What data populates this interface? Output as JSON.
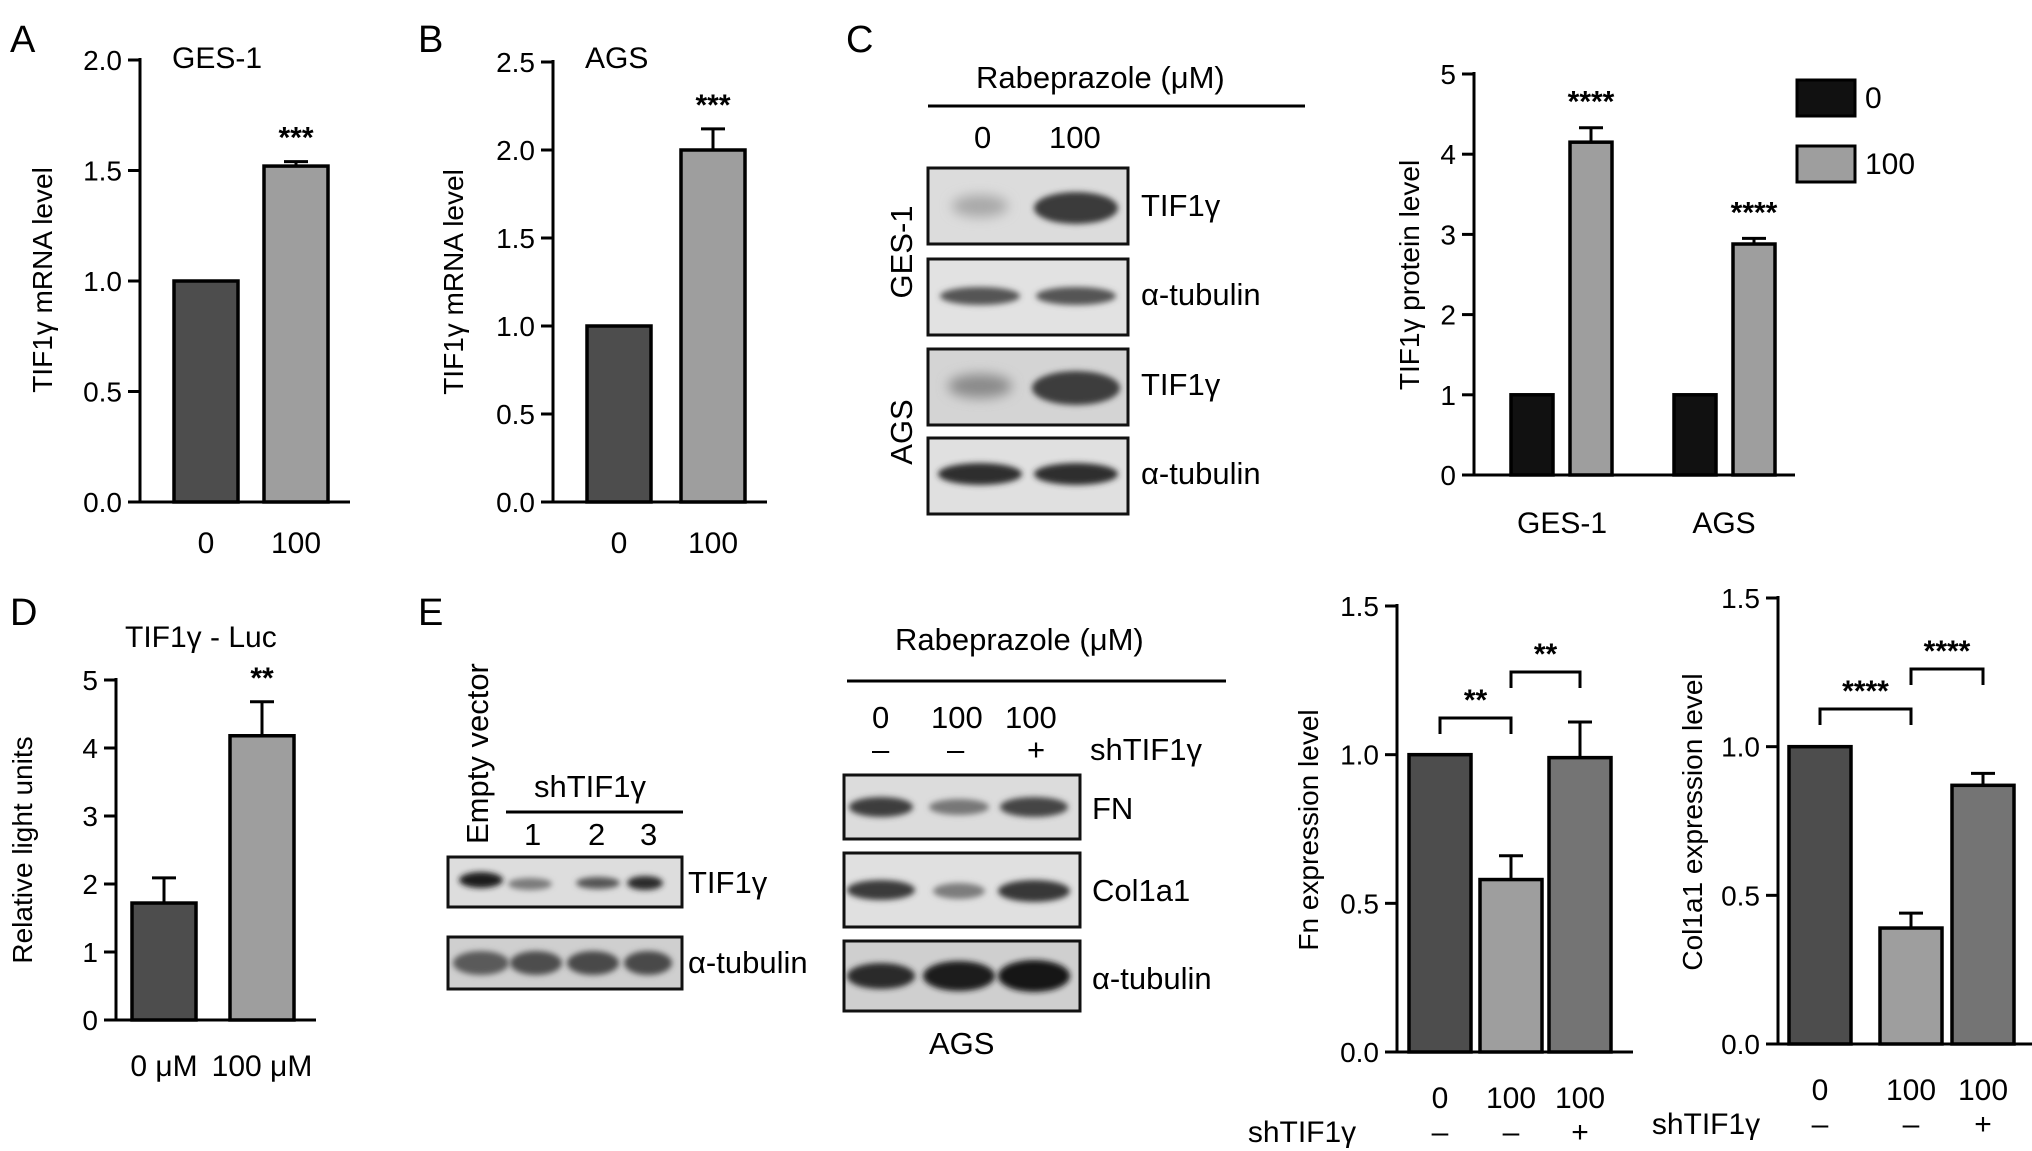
{
  "panels": {
    "A": "A",
    "B": "B",
    "C": "C",
    "D": "D",
    "E": "E"
  },
  "chart_data": [
    {
      "id": "A",
      "type": "bar",
      "title": "GES-1",
      "categories": [
        "0",
        "100"
      ],
      "values": [
        1.0,
        1.52
      ],
      "errors": [
        0,
        0.02
      ],
      "ylabel": "TIF1γ mRNA level",
      "ylim": [
        0,
        2.0
      ],
      "yticks": [
        "0.0",
        "0.5",
        "1.0",
        "1.5",
        "2.0"
      ],
      "significance": "***",
      "colors": [
        "#4d4d4d",
        "#9e9e9e"
      ]
    },
    {
      "id": "B",
      "type": "bar",
      "title": "AGS",
      "categories": [
        "0",
        "100"
      ],
      "values": [
        1.0,
        2.0
      ],
      "errors": [
        0,
        0.12
      ],
      "ylabel": "TIF1γ mRNA level",
      "ylim": [
        0,
        2.5
      ],
      "yticks": [
        "0.0",
        "0.5",
        "1.0",
        "1.5",
        "2.0",
        "2.5"
      ],
      "significance": "***",
      "colors": [
        "#4d4d4d",
        "#9e9e9e"
      ]
    },
    {
      "id": "C",
      "type": "bar",
      "title": "",
      "categories": [
        "GES-1",
        "AGS"
      ],
      "series": [
        {
          "name": "0",
          "values": [
            1.0,
            1.0
          ],
          "errors": [
            0,
            0
          ],
          "color": "#111111"
        },
        {
          "name": "100",
          "values": [
            4.15,
            2.88
          ],
          "errors": [
            0.18,
            0.07
          ],
          "color": "#9e9e9e"
        }
      ],
      "ylabel": "TIF1γ protein level",
      "ylim": [
        0,
        5
      ],
      "yticks": [
        "0",
        "1",
        "2",
        "3",
        "4",
        "5"
      ],
      "significance": [
        "****",
        "****"
      ],
      "legend": "top-right"
    },
    {
      "id": "D",
      "type": "bar",
      "title": "TIF1γ - Luc",
      "categories": [
        "0 μM",
        "100 μM"
      ],
      "values": [
        1.72,
        4.18
      ],
      "errors": [
        0.37,
        0.5
      ],
      "ylabel": "Relative light units",
      "ylim": [
        0,
        5
      ],
      "yticks": [
        "0",
        "1",
        "2",
        "3",
        "4",
        "5"
      ],
      "significance": "**",
      "colors": [
        "#4d4d4d",
        "#9e9e9e"
      ]
    },
    {
      "id": "Fn",
      "type": "bar",
      "title": "",
      "categories": [
        "0",
        "100",
        "100"
      ],
      "values": [
        1.0,
        0.58,
        0.99
      ],
      "errors": [
        0,
        0.08,
        0.12
      ],
      "ylabel": "Fn expression level",
      "ylim": [
        0,
        1.5
      ],
      "yticks": [
        "0.0",
        "0.5",
        "1.0",
        "1.5"
      ],
      "shlabel": "shTIF1γ",
      "signs": [
        "–",
        "–",
        "+"
      ],
      "brackets": [
        {
          "from": 0,
          "to": 1,
          "label": "**"
        },
        {
          "from": 1,
          "to": 2,
          "label": "**"
        }
      ],
      "colors": [
        "#4d4d4d",
        "#9e9e9e",
        "#747474"
      ]
    },
    {
      "id": "Col1a1",
      "type": "bar",
      "title": "",
      "categories": [
        "0",
        "100",
        "100"
      ],
      "values": [
        1.0,
        0.39,
        0.87
      ],
      "errors": [
        0,
        0.05,
        0.04
      ],
      "ylabel": "Col1a1 expression level",
      "ylim": [
        0,
        1.5
      ],
      "yticks": [
        "0.0",
        "0.5",
        "1.0",
        "1.5"
      ],
      "shlabel": "shTIF1γ",
      "signs": [
        "–",
        "–",
        "+"
      ],
      "brackets": [
        {
          "from": 0,
          "to": 1,
          "label": "****"
        },
        {
          "from": 1,
          "to": 2,
          "label": "****"
        }
      ],
      "colors": [
        "#4d4d4d",
        "#9e9e9e",
        "#747474"
      ]
    }
  ],
  "blotC": {
    "header": "Rabeprazole (μM)",
    "lanes": [
      "0",
      "100"
    ],
    "cell_lines": [
      "GES-1",
      "AGS"
    ],
    "bands": [
      "TIF1γ",
      "α-tubulin",
      "TIF1γ",
      "α-tubulin"
    ]
  },
  "blotE_left": {
    "empty_vector": "Empty vector",
    "sh_label": "shTIF1γ",
    "lanes": [
      "1",
      "2",
      "3"
    ],
    "bands": [
      "TIF1γ",
      "α-tubulin"
    ]
  },
  "blotE_right": {
    "header": "Rabeprazole (μM)",
    "doses": [
      "0",
      "100",
      "100"
    ],
    "signs": [
      "–",
      "–",
      "+"
    ],
    "sh_label": "shTIF1γ",
    "bands": [
      "FN",
      "Col1a1",
      "α-tubulin"
    ],
    "cell_line": "AGS"
  }
}
